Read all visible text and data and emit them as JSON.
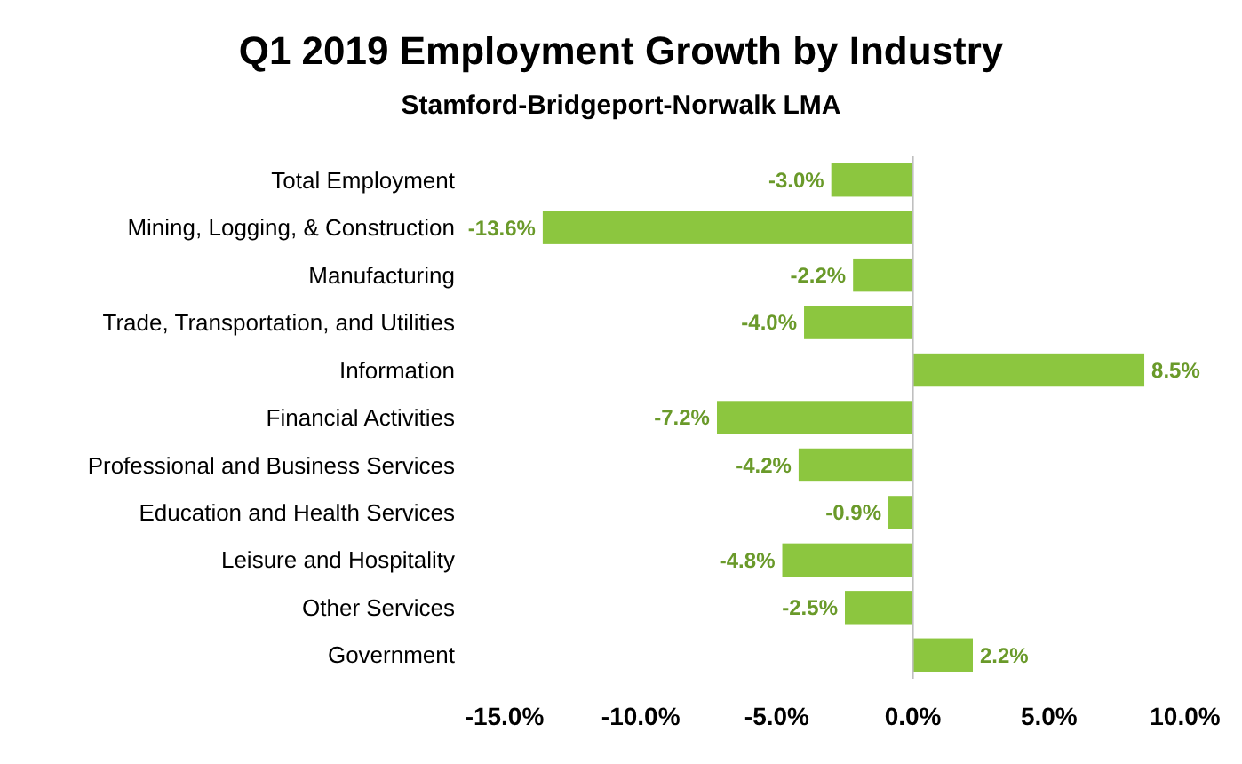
{
  "chart_data": {
    "type": "bar",
    "orientation": "horizontal",
    "title": "Q1 2019 Employment Growth by Industry",
    "subtitle": "Stamford-Bridgeport-Norwalk LMA",
    "categories": [
      "Total Employment",
      "Mining, Logging, & Construction",
      "Manufacturing",
      "Trade, Transportation, and Utilities",
      "Information",
      "Financial Activities",
      "Professional and Business Services",
      "Education and Health Services",
      "Leisure and Hospitality",
      "Other Services",
      "Government"
    ],
    "values": [
      -3.0,
      -13.6,
      -2.2,
      -4.0,
      8.5,
      -7.2,
      -4.2,
      -0.9,
      -4.8,
      -2.5,
      2.2
    ],
    "value_labels": [
      "-3.0%",
      "-13.6%",
      "-2.2%",
      "-4.0%",
      "8.5%",
      "-7.2%",
      "-4.2%",
      "-0.9%",
      "-4.8%",
      "-2.5%",
      "2.2%"
    ],
    "color": "#8cc63f",
    "xlim": [
      -15,
      10
    ],
    "xticks": [
      {
        "value": -15,
        "label": "-15.0%"
      },
      {
        "value": -10,
        "label": "-10.0%"
      },
      {
        "value": -5,
        "label": "-5.0%"
      },
      {
        "value": 0,
        "label": "0.0%"
      },
      {
        "value": 5,
        "label": "5.0%"
      },
      {
        "value": 10,
        "label": "10.0%"
      }
    ],
    "ref_lines": [
      {
        "axis": "x",
        "value": 0,
        "color": "#bfbfbf"
      }
    ],
    "grid": false,
    "legend": false
  }
}
